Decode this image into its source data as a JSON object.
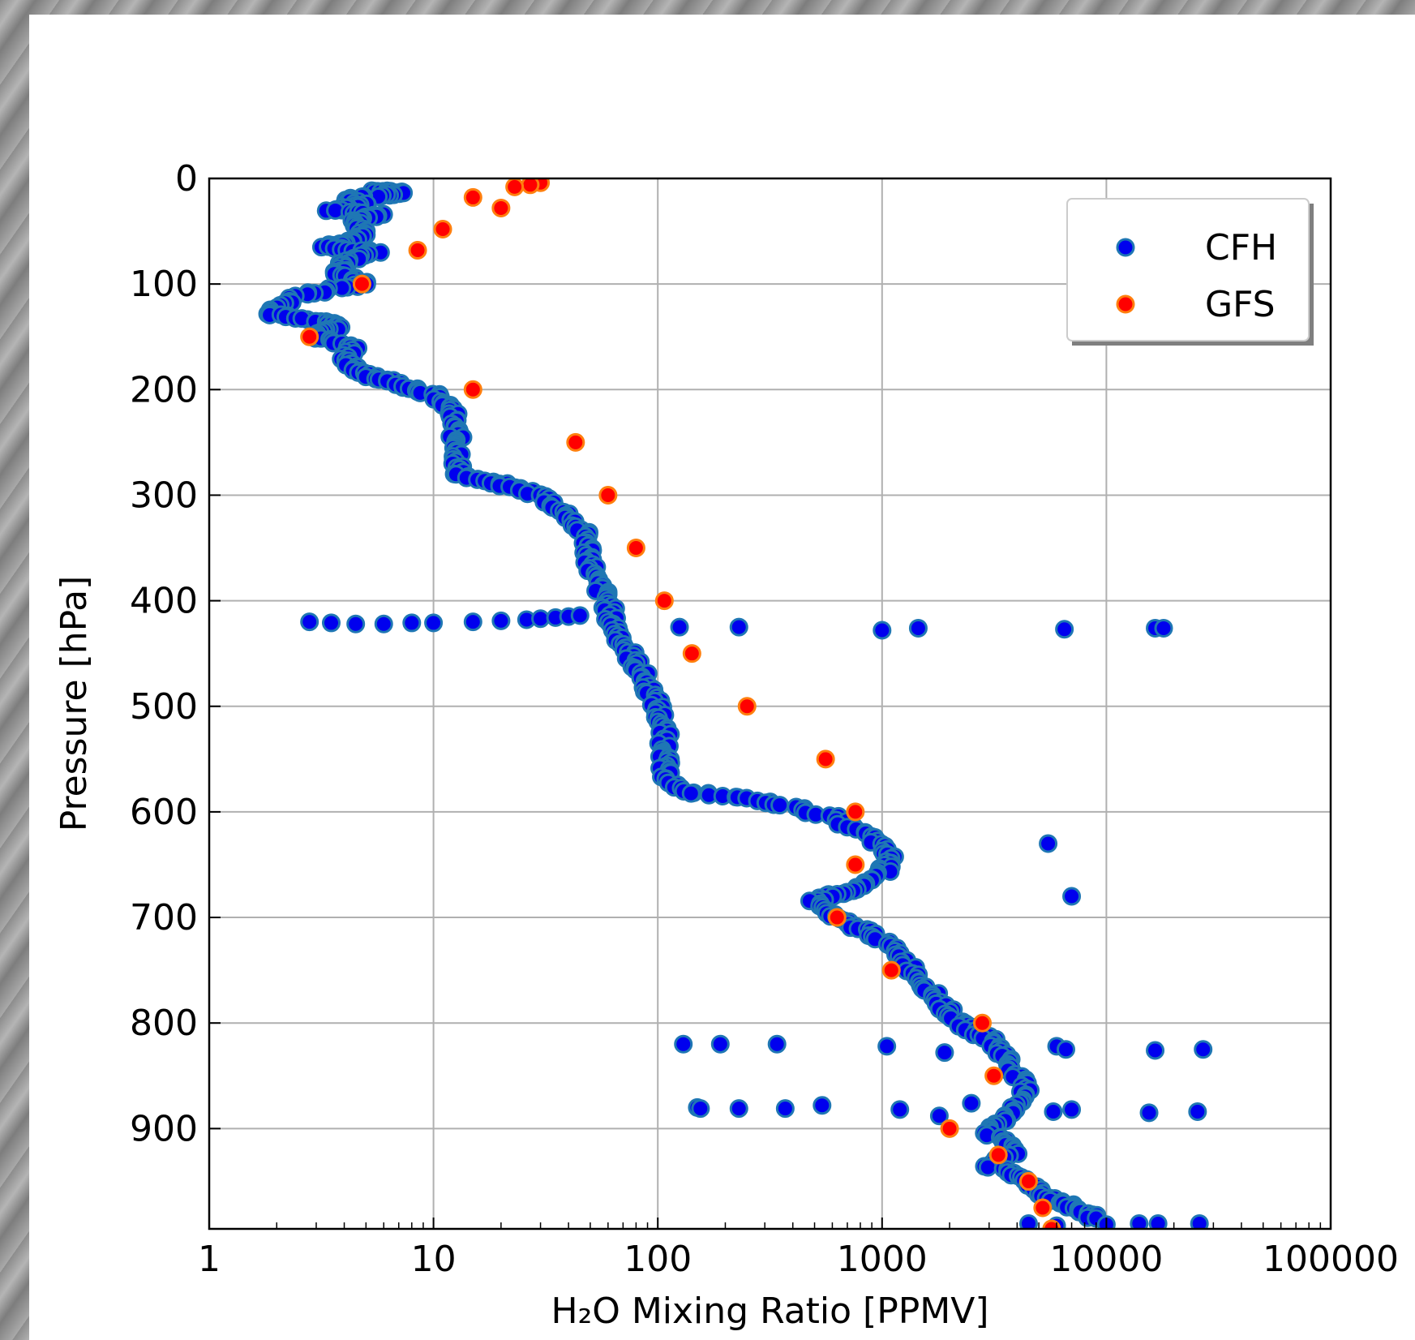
{
  "chart_data": {
    "type": "scatter",
    "xlabel": "H₂O Mixing Ratio [PPMV]",
    "ylabel": "Pressure [hPa]",
    "x_scale": "log",
    "xlim": [
      1,
      100000
    ],
    "ylim": [
      0,
      995
    ],
    "y_inverted": true,
    "grid": true,
    "legend_placement": "top-right",
    "x_ticks": [
      1,
      10,
      100,
      1000,
      10000,
      100000
    ],
    "x_tick_labels": [
      "1",
      "10",
      "100",
      "1000",
      "10000",
      "100000"
    ],
    "y_ticks": [
      0,
      100,
      200,
      300,
      400,
      500,
      600,
      700,
      800,
      900
    ],
    "y_tick_labels": [
      "0",
      "100",
      "200",
      "300",
      "400",
      "500",
      "600",
      "700",
      "800",
      "900"
    ],
    "series": [
      {
        "name": "CFH",
        "color": "#0000ee",
        "edge_color": "#1f77b4",
        "profile": [
          [
            5.5,
            12
          ],
          [
            6.5,
            13
          ],
          [
            7.5,
            14
          ],
          [
            4,
            20
          ],
          [
            5,
            25
          ],
          [
            3.5,
            30
          ],
          [
            6,
            35
          ],
          [
            4.5,
            40
          ],
          [
            5,
            50
          ],
          [
            4.2,
            60
          ],
          [
            3.3,
            65
          ],
          [
            5.5,
            70
          ],
          [
            4,
            80
          ],
          [
            3.8,
            90
          ],
          [
            5,
            100
          ],
          [
            2.6,
            110
          ],
          [
            1.8,
            128
          ],
          [
            3,
            135
          ],
          [
            4,
            140
          ],
          [
            2.9,
            150
          ],
          [
            4.5,
            160
          ],
          [
            4,
            175
          ],
          [
            5,
            185
          ],
          [
            7,
            195
          ],
          [
            10,
            205
          ],
          [
            12,
            220
          ],
          [
            12.5,
            240
          ],
          [
            13,
            260
          ],
          [
            12.8,
            280
          ],
          [
            20,
            290
          ],
          [
            30,
            300
          ],
          [
            40,
            320
          ],
          [
            48,
            340
          ],
          [
            50,
            360
          ],
          [
            52,
            380
          ],
          [
            60,
            400
          ],
          [
            62,
            420
          ],
          [
            70,
            440
          ],
          [
            80,
            460
          ],
          [
            90,
            480
          ],
          [
            100,
            500
          ],
          [
            105,
            520
          ],
          [
            110,
            545
          ],
          [
            105,
            560
          ],
          [
            125,
            580
          ],
          [
            300,
            590
          ],
          [
            600,
            605
          ],
          [
            900,
            625
          ],
          [
            1100,
            645
          ],
          [
            1000,
            660
          ],
          [
            700,
            675
          ],
          [
            500,
            685
          ],
          [
            600,
            700
          ],
          [
            900,
            715
          ],
          [
            1200,
            735
          ],
          [
            1500,
            760
          ],
          [
            1800,
            780
          ],
          [
            2200,
            800
          ],
          [
            3000,
            815
          ],
          [
            3500,
            830
          ],
          [
            4000,
            850
          ],
          [
            4500,
            870
          ],
          [
            3500,
            890
          ],
          [
            3000,
            905
          ],
          [
            4000,
            920
          ],
          [
            3000,
            935
          ],
          [
            4500,
            950
          ],
          [
            5500,
            965
          ],
          [
            7000,
            975
          ],
          [
            9000,
            985
          ]
        ],
        "extra_points": [
          [
            2.8,
            420
          ],
          [
            3.5,
            421
          ],
          [
            4.5,
            422
          ],
          [
            6,
            422
          ],
          [
            8,
            421
          ],
          [
            10,
            421
          ],
          [
            15,
            420
          ],
          [
            20,
            419
          ],
          [
            26,
            418
          ],
          [
            30,
            417
          ],
          [
            35,
            416
          ],
          [
            40,
            415
          ],
          [
            45,
            414
          ],
          [
            125,
            425
          ],
          [
            230,
            425
          ],
          [
            1000,
            428
          ],
          [
            1450,
            426
          ],
          [
            6500,
            427
          ],
          [
            16500,
            426
          ],
          [
            18000,
            426
          ],
          [
            7000,
            680
          ],
          [
            5500,
            630
          ],
          [
            130,
            820
          ],
          [
            190,
            820
          ],
          [
            340,
            820
          ],
          [
            1050,
            822
          ],
          [
            1900,
            828
          ],
          [
            6000,
            822
          ],
          [
            6600,
            825
          ],
          [
            16500,
            826
          ],
          [
            27000,
            825
          ],
          [
            150,
            880
          ],
          [
            155,
            881
          ],
          [
            230,
            881
          ],
          [
            370,
            881
          ],
          [
            540,
            878
          ],
          [
            1200,
            882
          ],
          [
            1800,
            888
          ],
          [
            2500,
            876
          ],
          [
            5800,
            884
          ],
          [
            7000,
            882
          ],
          [
            15500,
            885
          ],
          [
            25500,
            884
          ],
          [
            14000,
            990
          ],
          [
            17000,
            990
          ],
          [
            26000,
            990
          ],
          [
            10000,
            991
          ],
          [
            6000,
            992
          ],
          [
            4500,
            990
          ]
        ]
      },
      {
        "name": "GFS",
        "color": "#ff0000",
        "edge_color": "#ff7f0e",
        "points": [
          [
            30,
            4
          ],
          [
            27,
            6
          ],
          [
            23,
            8
          ],
          [
            15,
            18
          ],
          [
            20,
            28
          ],
          [
            11,
            48
          ],
          [
            8.5,
            68
          ],
          [
            4.8,
            100
          ],
          [
            2.8,
            150
          ],
          [
            15,
            200
          ],
          [
            43,
            250
          ],
          [
            60,
            300
          ],
          [
            80,
            350
          ],
          [
            107,
            400
          ],
          [
            142,
            450
          ],
          [
            250,
            500
          ],
          [
            560,
            550
          ],
          [
            760,
            600
          ],
          [
            760,
            650
          ],
          [
            630,
            700
          ],
          [
            1100,
            750
          ],
          [
            2800,
            800
          ],
          [
            3150,
            850
          ],
          [
            2000,
            900
          ],
          [
            3300,
            925
          ],
          [
            4500,
            950
          ],
          [
            5200,
            975
          ],
          [
            5700,
            995
          ]
        ]
      }
    ]
  }
}
